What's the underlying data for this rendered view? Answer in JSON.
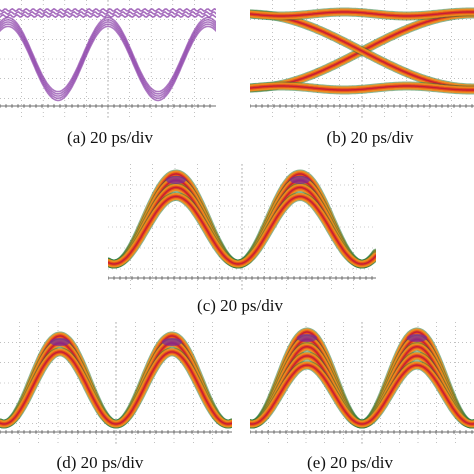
{
  "figure": {
    "panels": [
      {
        "id": "a",
        "caption": "(a) 20 ps/div",
        "style": "purple",
        "pattern": "dual-trace",
        "periods": 2
      },
      {
        "id": "b",
        "caption": "(b) 20 ps/div",
        "style": "heat",
        "pattern": "eye",
        "periods": 1
      },
      {
        "id": "c",
        "caption": "(c) 20 ps/div",
        "style": "heat",
        "pattern": "pulse",
        "periods": 2
      },
      {
        "id": "d",
        "caption": "(d) 20 ps/div",
        "style": "heat",
        "pattern": "pulse",
        "periods": 2
      },
      {
        "id": "e",
        "caption": "(e) 20 ps/div",
        "style": "heat",
        "pattern": "pulse",
        "periods": 2
      }
    ],
    "colors": {
      "purple": "#8a3ea8",
      "heat_outer": "#f08a1c",
      "heat_mid": "#e8461a",
      "heat_core": "#c21a3a",
      "heat_hot": "#7a2a9a",
      "heat_edge": "#2a7a3a",
      "grid": "#9a9a9a",
      "axis": "#3c3c3c"
    }
  }
}
